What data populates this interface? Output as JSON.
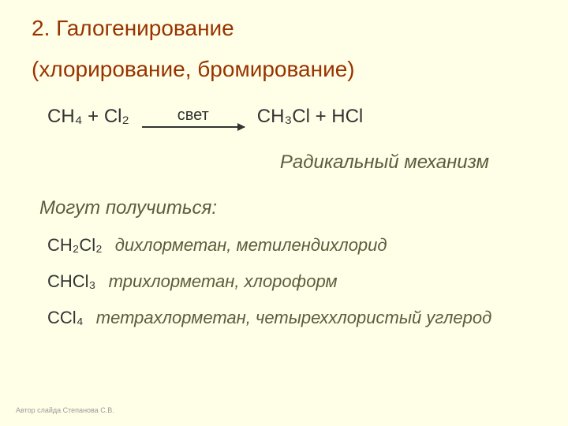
{
  "title": "2. Галогенирование",
  "subtitle": "(хлорирование, бромирование)",
  "equation": {
    "left": "CH₄ + Cl₂",
    "arrow_label": "свет",
    "right": "CH₃Cl + HCl"
  },
  "mechanism": "Радикальный механизм",
  "products_label": "Могут получиться:",
  "products": [
    {
      "formula": "CH₂Cl₂",
      "name": "дихлорметан, метилендихлорид"
    },
    {
      "formula": "CHCl₃",
      "name": "трихлорметан, хлороформ"
    },
    {
      "formula": "CCl₄",
      "name": "тетрахлорметан, четыреххлористый углерод"
    }
  ],
  "footer": "Автор слайда Степанова С.В.",
  "colors": {
    "background": "#ffffe8",
    "title_color": "#993300",
    "text_color": "#333333",
    "italic_color": "#5c5c3d",
    "footer_color": "#999999"
  },
  "typography": {
    "title_fontsize": 28,
    "body_fontsize": 24,
    "product_fontsize": 22,
    "footer_fontsize": 9
  }
}
